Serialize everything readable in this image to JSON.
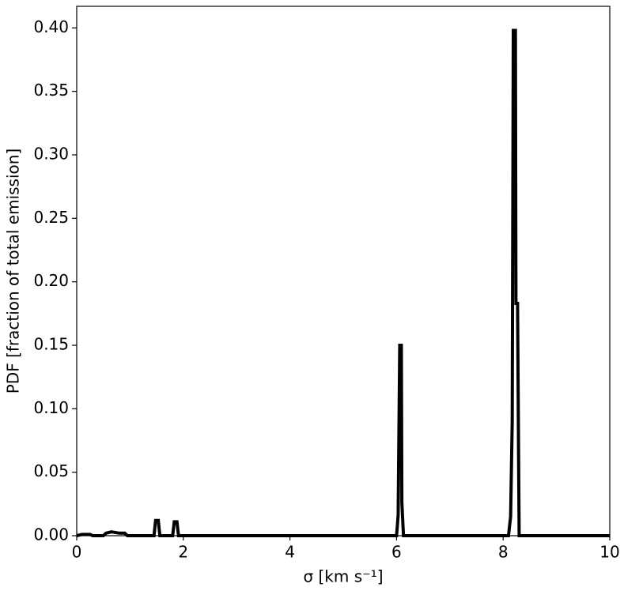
{
  "chart_data": {
    "type": "line",
    "xlabel": "σ [km s⁻¹]",
    "ylabel": "PDF [fraction of total emission]",
    "color": "#000000",
    "x": [
      0.0,
      0.1,
      0.25,
      0.3,
      0.5,
      0.55,
      0.65,
      0.8,
      0.9,
      0.95,
      1.45,
      1.48,
      1.53,
      1.56,
      1.8,
      1.83,
      1.88,
      1.91,
      6.0,
      6.03,
      6.06,
      6.09,
      6.1,
      6.13,
      8.1,
      8.14,
      8.17,
      8.19,
      8.23,
      8.24,
      8.27,
      8.3,
      10.0
    ],
    "values": [
      0,
      0.001,
      0.001,
      0,
      0,
      0.002,
      0.003,
      0.002,
      0.002,
      0,
      0,
      0.012,
      0.012,
      0,
      0,
      0.011,
      0.011,
      0,
      0,
      0.016,
      0.15,
      0.15,
      0.026,
      0,
      0,
      0.015,
      0.09,
      0.398,
      0.398,
      0.183,
      0.183,
      0,
      0
    ],
    "xlim": [
      0,
      10
    ],
    "xticks": [
      0,
      2,
      4,
      6,
      8,
      10
    ],
    "ylim": [
      0,
      0.417
    ],
    "yticks": [
      {
        "value": 0,
        "label": "0.00"
      },
      {
        "value": 0.05,
        "label": "0.05"
      },
      {
        "value": 0.1,
        "label": "0.10"
      },
      {
        "value": 0.15,
        "label": "0.15"
      },
      {
        "value": 0.2,
        "label": "0.20"
      },
      {
        "value": 0.25,
        "label": "0.25"
      },
      {
        "value": 0.3,
        "label": "0.30"
      },
      {
        "value": 0.35,
        "label": "0.35"
      },
      {
        "value": 0.4,
        "label": "0.40"
      }
    ]
  }
}
